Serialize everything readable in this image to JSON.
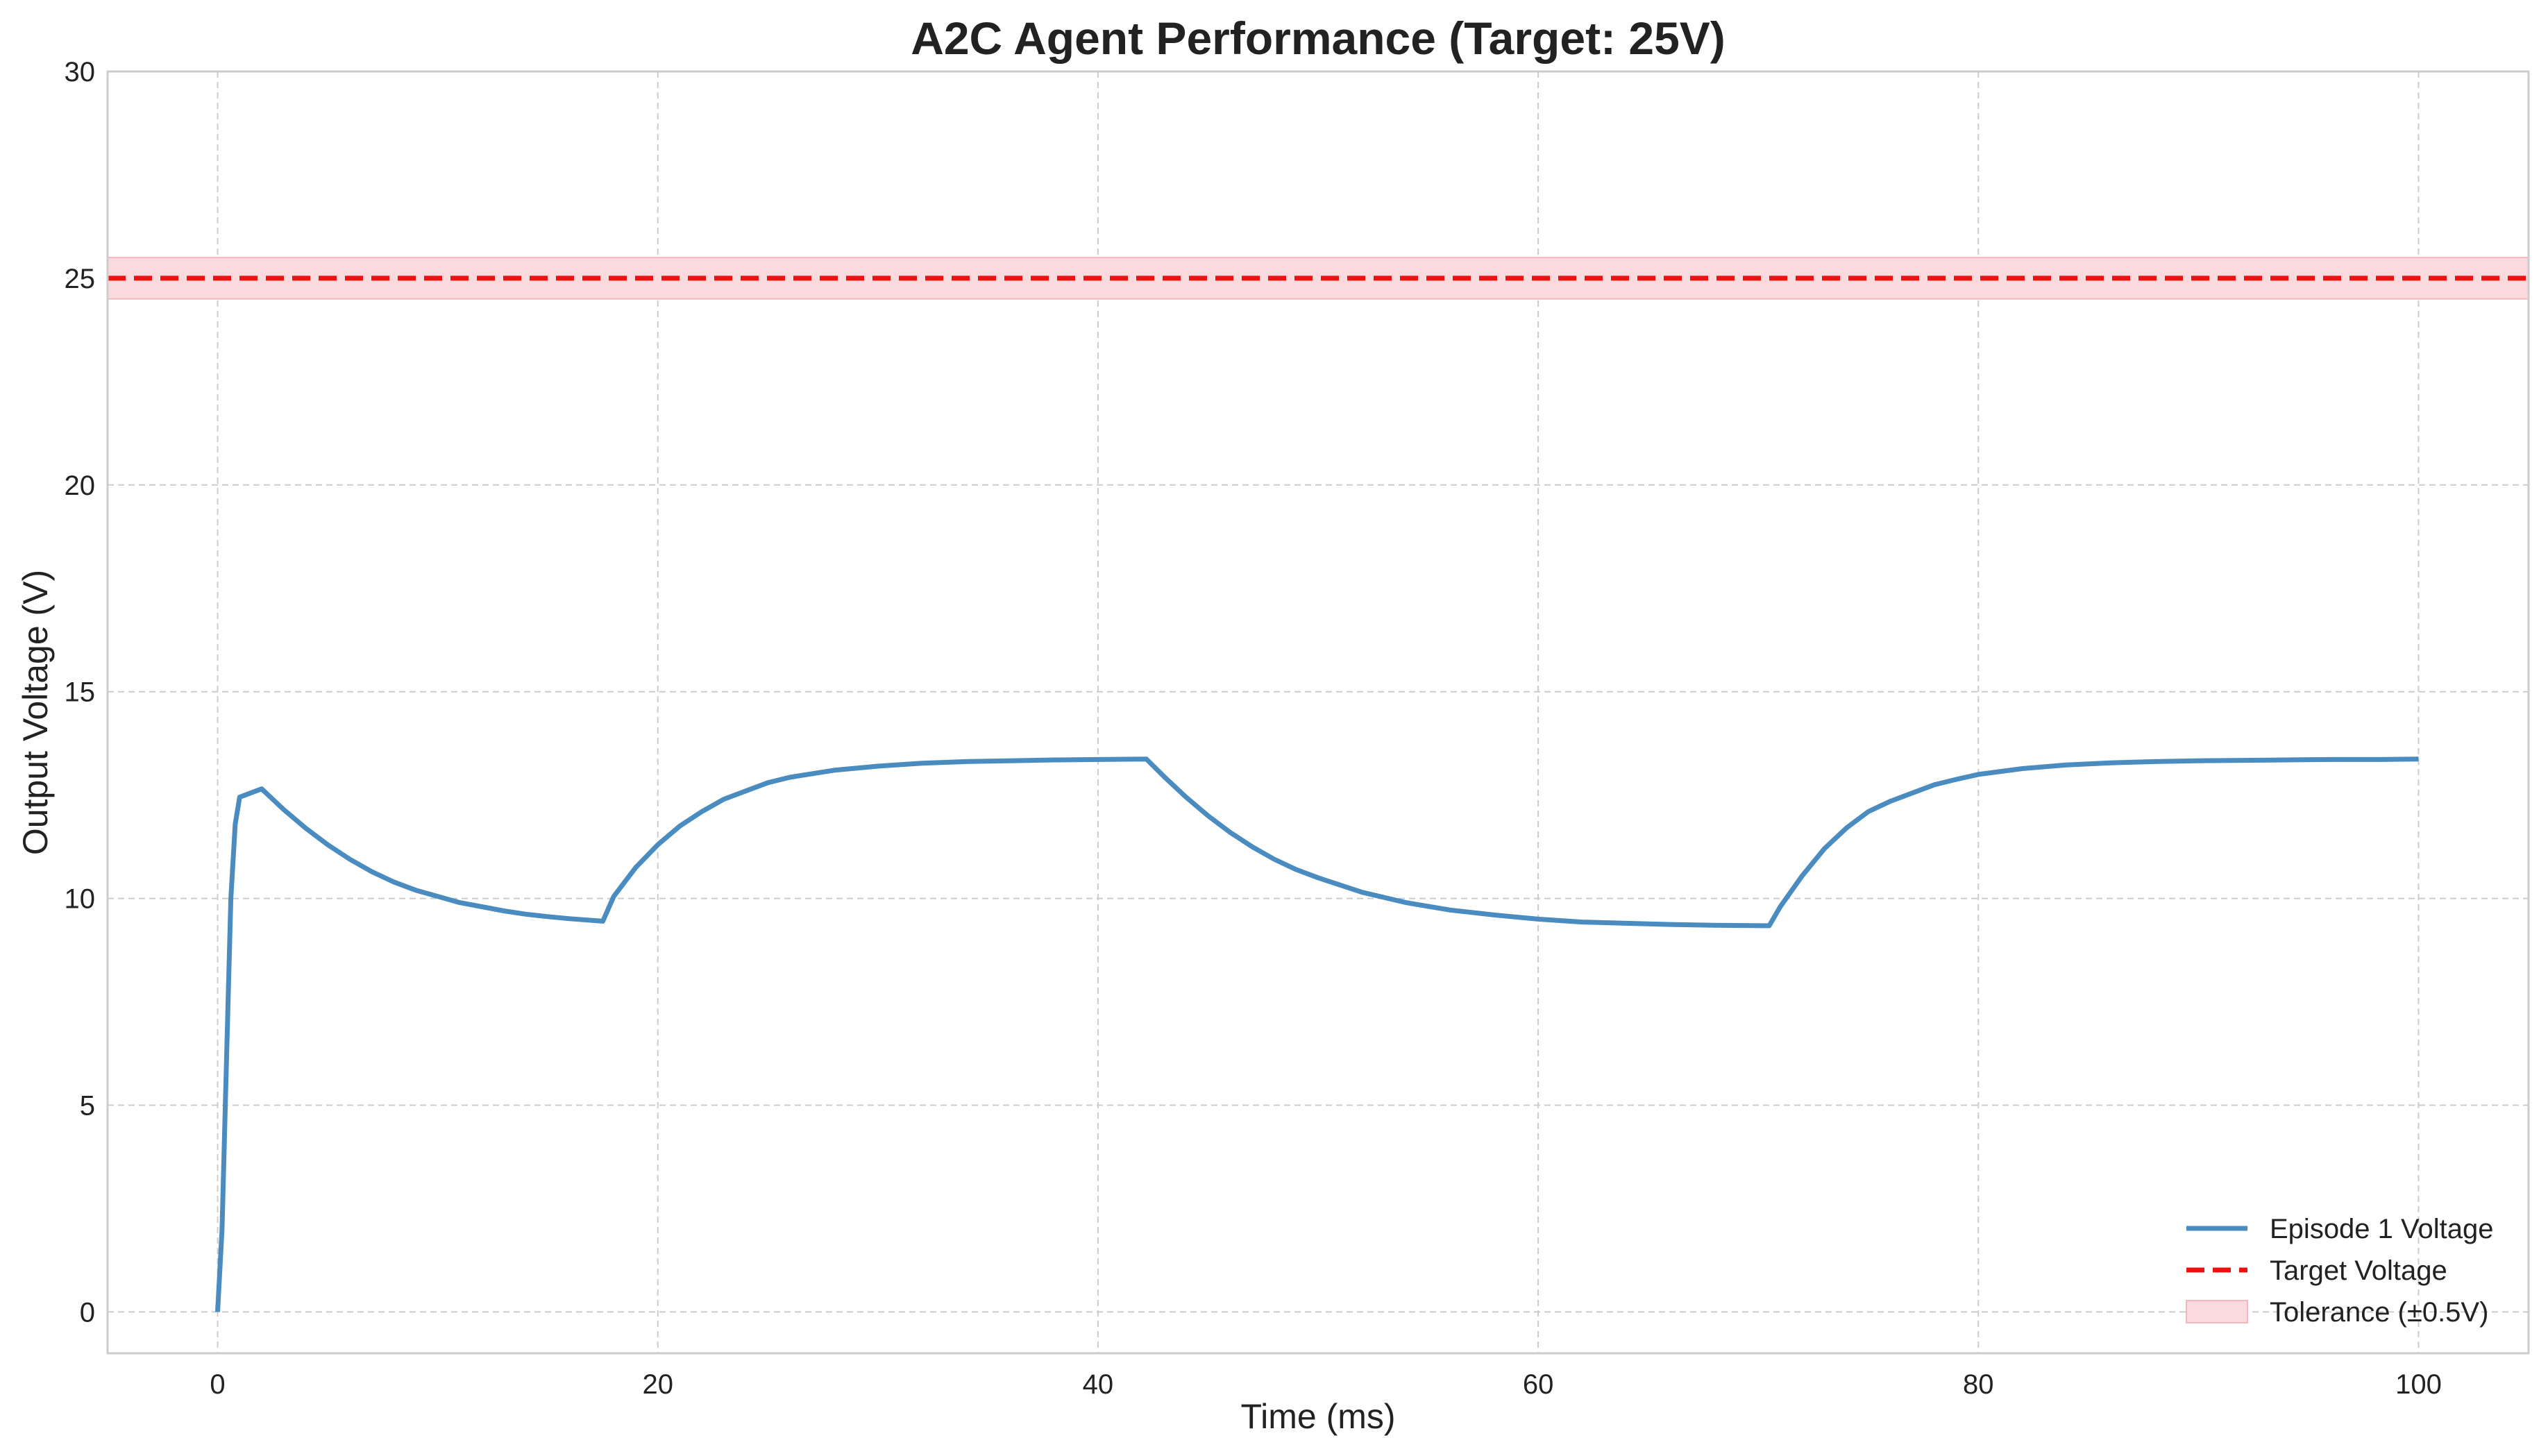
{
  "chart_data": {
    "type": "line",
    "title": "A2C Agent Performance (Target: 25V)",
    "xlabel": "Time (ms)",
    "ylabel": "Output Voltage (V)",
    "xlim": [
      -5,
      105
    ],
    "ylim": [
      -1,
      30
    ],
    "xticks": [
      0,
      20,
      40,
      60,
      80,
      100
    ],
    "yticks": [
      0,
      5,
      10,
      15,
      20,
      25,
      30
    ],
    "xtick_labels": [
      "0",
      "20",
      "40",
      "60",
      "80",
      "100"
    ],
    "ytick_labels": [
      "0",
      "5",
      "10",
      "15",
      "20",
      "25",
      "30"
    ],
    "grid": true,
    "legend_position": "bottom-right",
    "series": [
      {
        "name": "Episode 1 Voltage",
        "color": "#4a8bc0",
        "style": "solid",
        "x": [
          0,
          0.2,
          0.4,
          0.6,
          0.8,
          1.0,
          2.0,
          3,
          4,
          5,
          6,
          7,
          8,
          9,
          10,
          11,
          12,
          13,
          14,
          15,
          16,
          17.5,
          18,
          19,
          20,
          21,
          22,
          23,
          24,
          25,
          26,
          28,
          30,
          32,
          34,
          36,
          38,
          40,
          42.2,
          43,
          44,
          45,
          46,
          47,
          48,
          49,
          50,
          52,
          54,
          56,
          58,
          60,
          62,
          64,
          66,
          68,
          70.5,
          71,
          72,
          73,
          74,
          75,
          76,
          77,
          78,
          79,
          80,
          82,
          84,
          86,
          88,
          90,
          92,
          94,
          96,
          98,
          100
        ],
        "y": [
          0,
          2.0,
          6.0,
          10.0,
          11.8,
          12.45,
          12.65,
          12.15,
          11.7,
          11.3,
          10.95,
          10.65,
          10.4,
          10.2,
          10.05,
          9.9,
          9.8,
          9.7,
          9.62,
          9.56,
          9.51,
          9.45,
          10.05,
          10.75,
          11.3,
          11.75,
          12.1,
          12.4,
          12.6,
          12.8,
          12.93,
          13.1,
          13.2,
          13.27,
          13.31,
          13.33,
          13.35,
          13.36,
          13.37,
          12.95,
          12.45,
          12.0,
          11.6,
          11.25,
          10.95,
          10.7,
          10.5,
          10.15,
          9.9,
          9.72,
          9.6,
          9.5,
          9.43,
          9.4,
          9.37,
          9.35,
          9.34,
          9.8,
          10.55,
          11.2,
          11.7,
          12.1,
          12.35,
          12.55,
          12.75,
          12.88,
          13.0,
          13.14,
          13.23,
          13.28,
          13.31,
          13.33,
          13.34,
          13.35,
          13.36,
          13.36,
          13.37
        ]
      },
      {
        "name": "Target Voltage",
        "color": "#ee1111",
        "style": "dashed",
        "x": [
          -5,
          105
        ],
        "y": [
          25,
          25
        ]
      }
    ],
    "bands": [
      {
        "name": "Tolerance (±0.5V)",
        "color": "#fadadd",
        "edge_color": "#f2b8bd",
        "y_low": 24.5,
        "y_high": 25.5
      }
    ]
  }
}
